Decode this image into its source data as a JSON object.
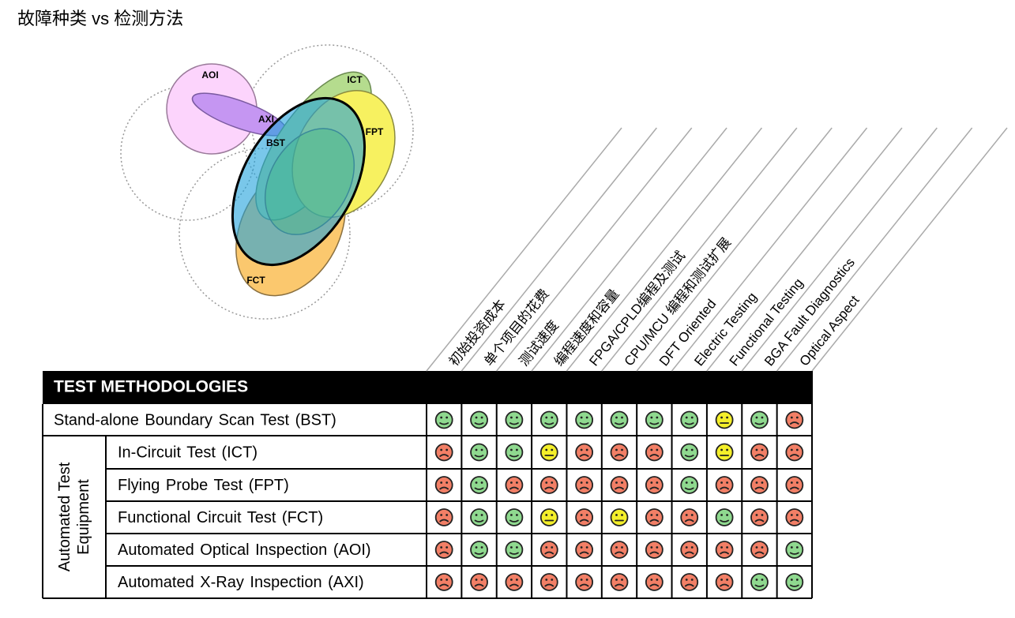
{
  "title": "故障种类 vs 检测方法",
  "venn": {
    "labels": [
      "AOI",
      "AXI",
      "ICT",
      "FPT",
      "BST",
      "FCT"
    ]
  },
  "table": {
    "header": "TEST METHODOLOGIES",
    "group": "Automated Test Equipment",
    "columns": [
      "初始投资成本",
      "单个项目的花费",
      "测试速度",
      "编程速度和容量",
      "FPGA/CPLD编程及测试",
      "CPU/MCU 编程和测试扩展",
      "DFT Oriented",
      "Electric Testing",
      "Functional Testing",
      "BGA Fault Diagnostics",
      "Optical Aspect"
    ],
    "rows": [
      {
        "label": "Stand-alone Boundary Scan Test (BST)",
        "ratings": [
          1,
          1,
          1,
          1,
          1,
          1,
          1,
          1,
          0,
          1,
          -1
        ]
      },
      {
        "label": "In-Circuit Test (ICT)",
        "ratings": [
          -1,
          1,
          1,
          0,
          -1,
          -1,
          -1,
          1,
          0,
          -1,
          -1
        ]
      },
      {
        "label": "Flying Probe Test (FPT)",
        "ratings": [
          -1,
          1,
          -1,
          -1,
          -1,
          -1,
          -1,
          1,
          -1,
          -1,
          -1
        ]
      },
      {
        "label": "Functional Circuit Test (FCT)",
        "ratings": [
          -1,
          1,
          1,
          0,
          -1,
          0,
          -1,
          -1,
          1,
          -1,
          -1
        ]
      },
      {
        "label": "Automated Optical Inspection (AOI)",
        "ratings": [
          -1,
          1,
          1,
          -1,
          -1,
          -1,
          -1,
          -1,
          -1,
          -1,
          1
        ]
      },
      {
        "label": "Automated X-Ray Inspection (AXI)",
        "ratings": [
          -1,
          -1,
          -1,
          -1,
          -1,
          -1,
          -1,
          -1,
          -1,
          1,
          1
        ]
      }
    ]
  }
}
